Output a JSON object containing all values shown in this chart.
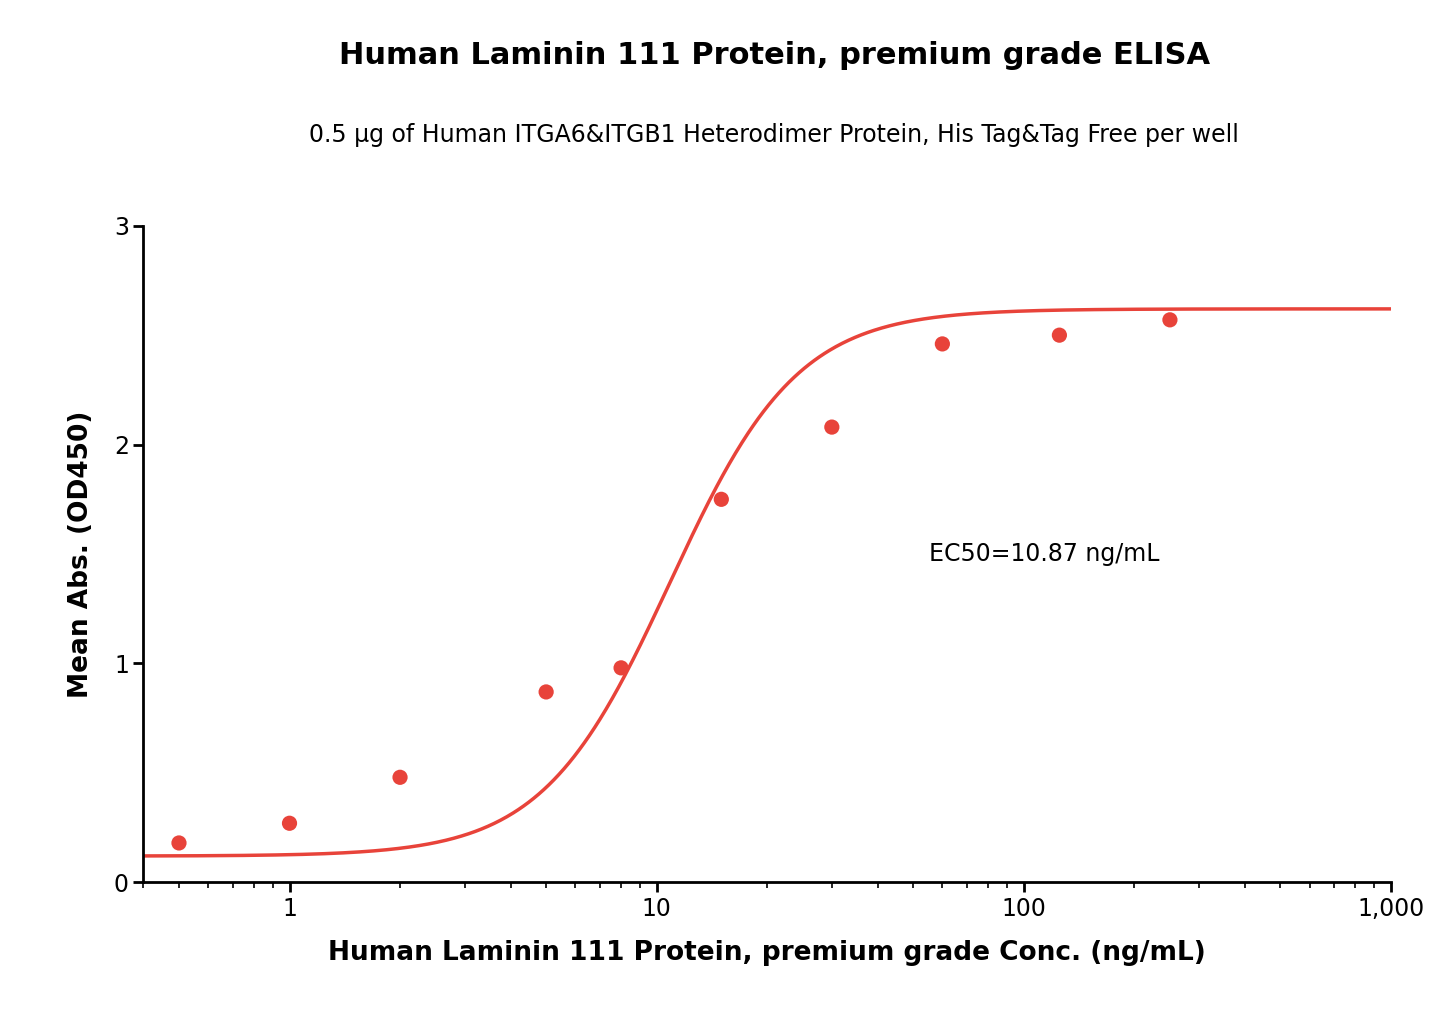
{
  "title": "Human Laminin 111 Protein, premium grade ELISA",
  "subtitle": "0.5 μg of Human ITGA6&ITGB1 Heterodimer Protein, His Tag&Tag Free per well",
  "xlabel": "Human Laminin 111 Protein, premium grade Conc. (ng/mL)",
  "ylabel": "Mean Abs. (OD450)",
  "ec50_label": "EC50=10.87 ng/mL",
  "data_x": [
    0.5,
    1.0,
    2.0,
    5.0,
    8.0,
    15.0,
    30.0,
    60.0,
    125.0,
    250.0
  ],
  "data_y": [
    0.18,
    0.27,
    0.48,
    0.87,
    0.98,
    1.75,
    2.08,
    2.46,
    2.5,
    2.57
  ],
  "curve_color": "#e8433a",
  "dot_color": "#e8433a",
  "xlim_log": [
    0.4,
    1000
  ],
  "ylim": [
    0,
    3.0
  ],
  "yticks": [
    0,
    1,
    2,
    3
  ],
  "title_fontsize": 22,
  "subtitle_fontsize": 17,
  "axis_label_fontsize": 19,
  "tick_fontsize": 17,
  "ec50_fontsize": 17,
  "background_color": "#ffffff",
  "dot_size": 120
}
